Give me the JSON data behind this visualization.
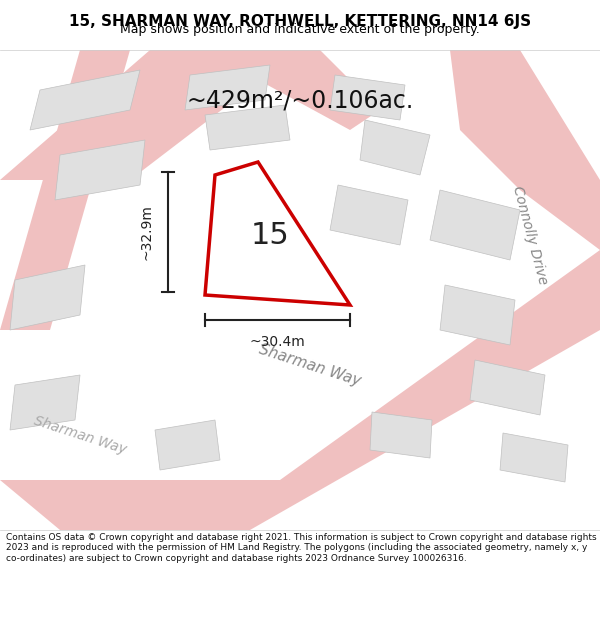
{
  "title_line1": "15, SHARMAN WAY, ROTHWELL, KETTERING, NN14 6JS",
  "title_line2": "Map shows position and indicative extent of the property.",
  "area_label": "~429m²/~0.106ac.",
  "number_label": "15",
  "dim_vertical": "~32.9m",
  "dim_horizontal": "~30.4m",
  "road_label1": "Sharman Way",
  "road_label2": "Sharman Way",
  "road_label3": "Connolly Drive",
  "footer_text": "Contains OS data © Crown copyright and database right 2021. This information is subject to Crown copyright and database rights 2023 and is reproduced with the permission of HM Land Registry. The polygons (including the associated geometry, namely x, y co-ordinates) are subject to Crown copyright and database rights 2023 Ordnance Survey 100026316.",
  "bg_color": "#ffffff",
  "map_bg": "#f5f5f5",
  "road_color": "#f0c0c0",
  "road_center_color": "#e8a0a0",
  "highlight_color": "#cc0000",
  "building_color": "#e0e0e0",
  "building_edge": "#c0c0c0",
  "dim_color": "#222222",
  "title_color": "#000000",
  "road_text_color": "#aaaaaa",
  "road_text_color2": "#888888"
}
